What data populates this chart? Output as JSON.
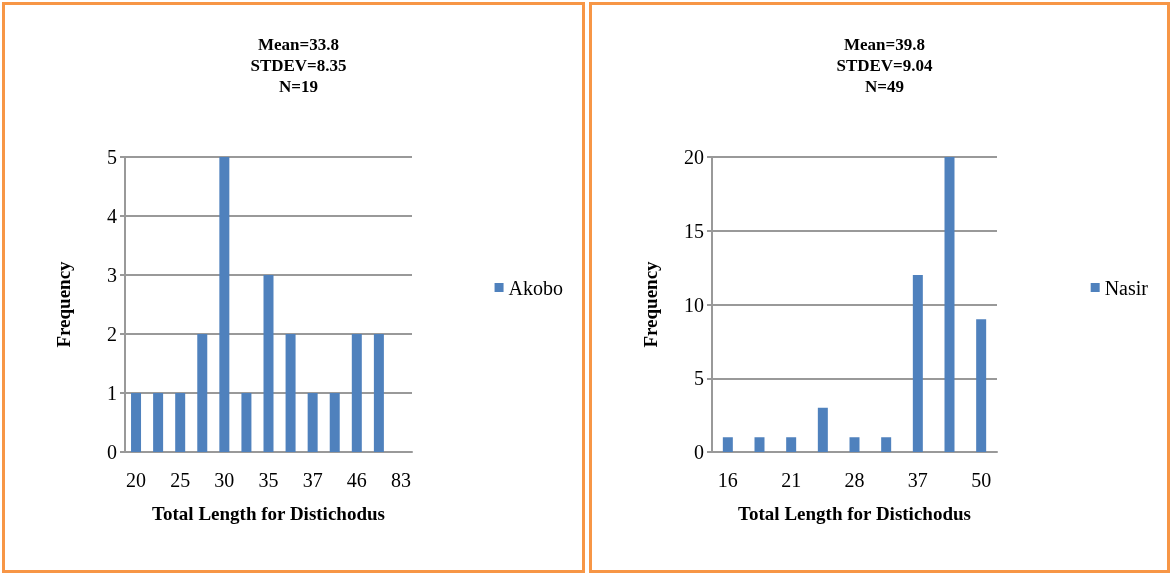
{
  "chart_data": [
    {
      "type": "bar",
      "title": "Mean=33.8\nSTDEV=8.35\nN=19",
      "xlabel": "Total Length for Distichodus",
      "ylabel": "Frequency",
      "categories": [
        "20",
        null,
        "25",
        null,
        "30",
        null,
        "35",
        null,
        "37",
        null,
        "46",
        null,
        "83"
      ],
      "series": [
        {
          "name": "Akobo",
          "color": "#4f81bd",
          "values": [
            1,
            1,
            1,
            2,
            5,
            1,
            3,
            2,
            1,
            1,
            2,
            2,
            0
          ]
        }
      ],
      "ylim": [
        0,
        5
      ],
      "yticks": [
        0,
        1,
        2,
        3,
        4,
        5
      ],
      "grid": "y",
      "legend": "right"
    },
    {
      "type": "bar",
      "title": "Mean=39.8\nSTDEV=9.04\nN=49",
      "xlabel": "Total Length for Distichodus",
      "ylabel": "Frequency",
      "categories": [
        "16",
        null,
        "21",
        null,
        "28",
        null,
        "37",
        null,
        "50"
      ],
      "series": [
        {
          "name": "Nasir",
          "color": "#4f81bd",
          "values": [
            1,
            1,
            1,
            3,
            1,
            1,
            12,
            20,
            9
          ]
        }
      ],
      "ylim": [
        0,
        20
      ],
      "yticks": [
        0,
        5,
        10,
        15,
        20
      ],
      "grid": "y",
      "legend": "right"
    }
  ]
}
